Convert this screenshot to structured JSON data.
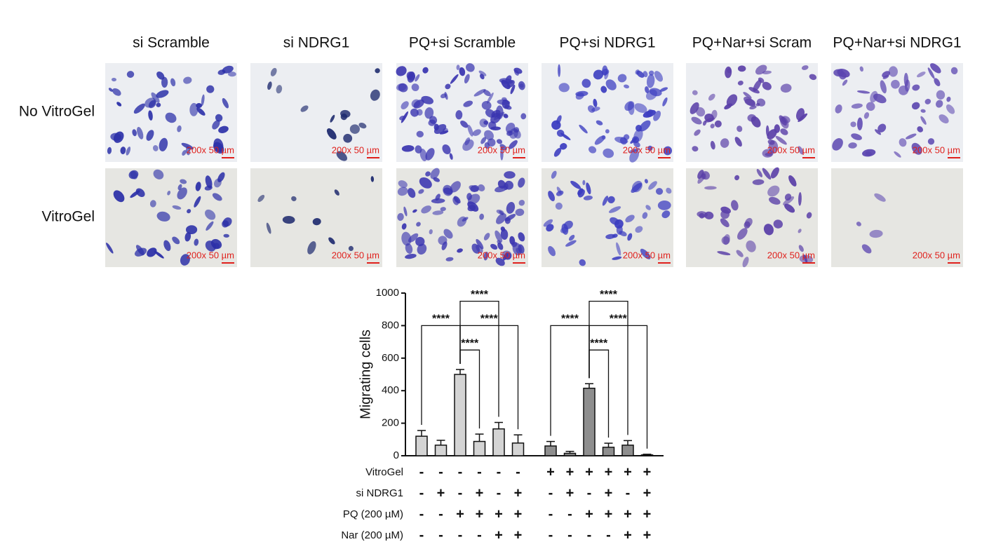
{
  "panels": {
    "columns": [
      "si Scramble",
      "si NDRG1",
      "PQ+si Scramble",
      "PQ+si NDRG1",
      "PQ+Nar+si Scram",
      "PQ+Nar+si NDRG1"
    ],
    "rows": [
      "No VitroGel",
      "VitroGel"
    ],
    "scale_bar": "200x 50 µm"
  },
  "chart_data": {
    "type": "bar",
    "ylabel": "Migrating cells",
    "categories": [
      null,
      null,
      null,
      null,
      null,
      null,
      null,
      null,
      null,
      null,
      null,
      null
    ],
    "values": [
      120,
      65,
      500,
      88,
      165,
      78,
      60,
      15,
      415,
      52,
      65,
      5
    ],
    "errors": [
      35,
      30,
      30,
      45,
      40,
      50,
      28,
      12,
      28,
      25,
      28,
      4
    ],
    "colors": [
      "#d4d4d4",
      "#d4d4d4",
      "#d4d4d4",
      "#d4d4d4",
      "#d4d4d4",
      "#d4d4d4",
      "#8e8e8e",
      "#8e8e8e",
      "#8e8e8e",
      "#8e8e8e",
      "#8e8e8e",
      "#8e8e8e"
    ],
    "ylim": [
      0,
      1000
    ],
    "yticks": [
      0,
      200,
      400,
      600,
      800,
      1000
    ],
    "significance": [
      {
        "label": "****",
        "from": 0,
        "to": 2
      },
      {
        "label": "****",
        "from": 2,
        "to": 5
      },
      {
        "label": "****",
        "from": 2,
        "to": 4
      },
      {
        "label": "****",
        "from": 2,
        "to": 3
      },
      {
        "label": "****",
        "from": 6,
        "to": 8
      },
      {
        "label": "****",
        "from": 8,
        "to": 11
      },
      {
        "label": "****",
        "from": 8,
        "to": 10
      },
      {
        "label": "****",
        "from": 8,
        "to": 9
      }
    ],
    "conditions": [
      {
        "label": "VitroGel",
        "signs": [
          "-",
          "-",
          "-",
          "-",
          "-",
          "-",
          "+",
          "+",
          "+",
          "+",
          "+",
          "+"
        ]
      },
      {
        "label": "si NDRG1",
        "signs": [
          "-",
          "+",
          "-",
          "+",
          "-",
          "+",
          "-",
          "+",
          "-",
          "+",
          "-",
          "+"
        ]
      },
      {
        "label": "PQ (200 µM)",
        "signs": [
          "-",
          "-",
          "+",
          "+",
          "+",
          "+",
          "-",
          "-",
          "+",
          "+",
          "+",
          "+"
        ]
      },
      {
        "label": "Nar (200 µM)",
        "signs": [
          "-",
          "-",
          "-",
          "-",
          "+",
          "+",
          "-",
          "-",
          "-",
          "-",
          "+",
          "+"
        ]
      }
    ]
  }
}
